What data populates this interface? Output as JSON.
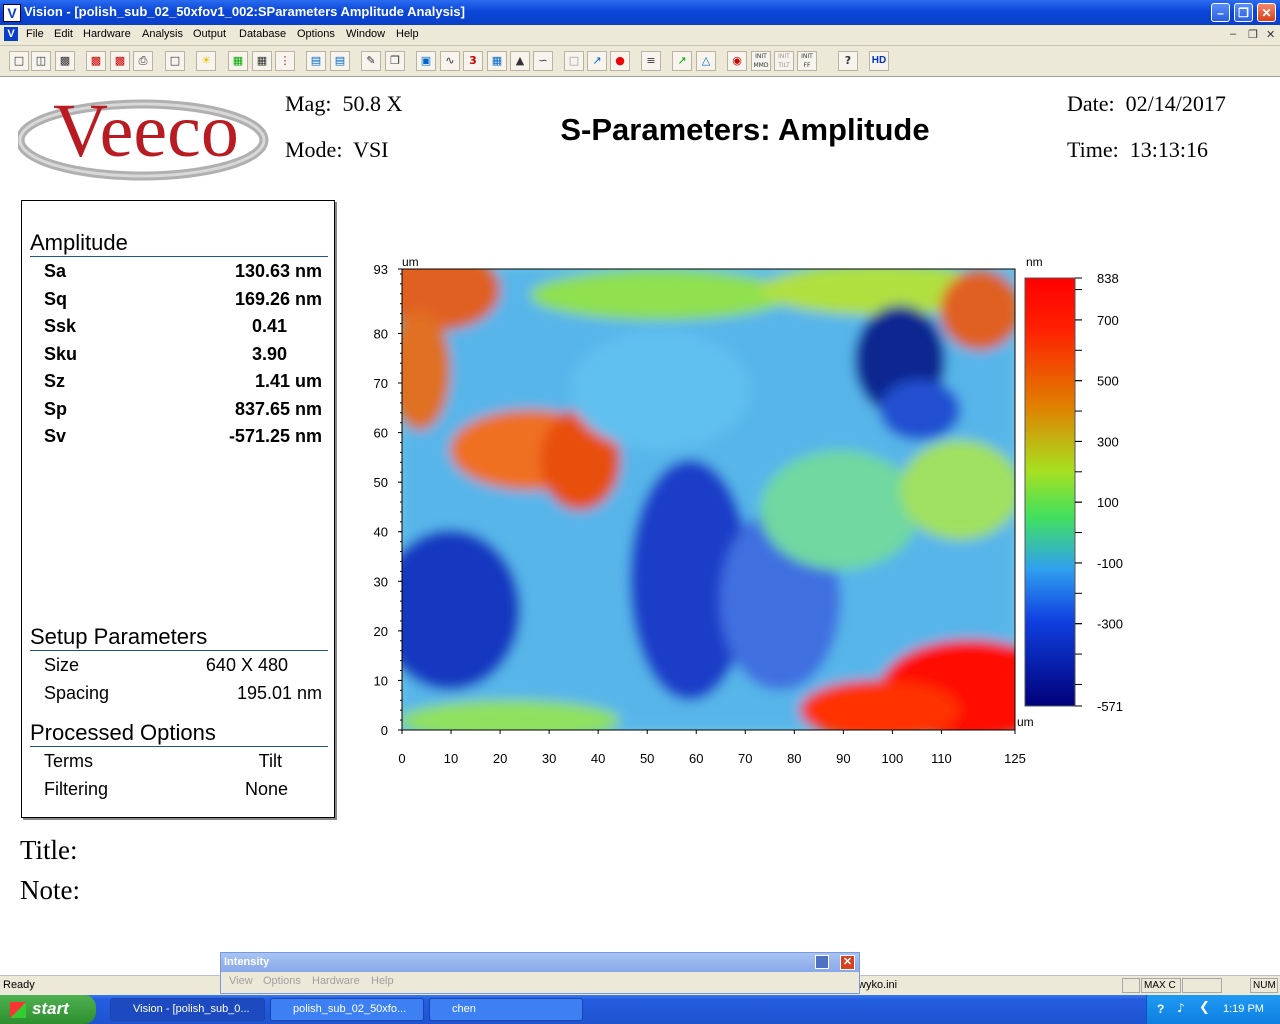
{
  "window": {
    "title": "Vision - [polish_sub_02_50xfov1_002:SParameters Amplitude Analysis]",
    "app_icon_letter": "V",
    "buttons": [
      "minimize-icon",
      "restore-icon",
      "close-icon"
    ]
  },
  "menu": {
    "items": [
      "File",
      "Edit",
      "Hardware",
      "Analysis",
      "Output",
      "Database",
      "Options",
      "Window",
      "Help"
    ],
    "mdi_buttons": [
      "minimize-icon",
      "restore-icon",
      "close-icon"
    ]
  },
  "toolbar": {
    "buttons": [
      "new",
      "open",
      "save",
      "save-as",
      "save-red",
      "print",
      "page",
      "sun",
      "color-map",
      "multi",
      "dots",
      "report",
      "report2",
      "ruler",
      "copy",
      "contour",
      "profile",
      "3d",
      "histogram",
      "peaks",
      "fit",
      "blank",
      "cursor",
      "record",
      "align",
      "marker",
      "pyramid",
      "init-mmd",
      "init-tilt",
      "init-ff",
      "help",
      "hd"
    ],
    "init_mmd": "INIT MMD",
    "init_tilt": "INIT TILT",
    "init_ff": "INIT FF",
    "hd": "HD"
  },
  "header": {
    "logo": "Veeco",
    "mag_label": "Mag:",
    "mag_value": "50.8 X",
    "mode_label": "Mode:",
    "mode_value": "VSI",
    "title": "S-Parameters: Amplitude",
    "date_label": "Date:",
    "date_value": "02/14/2017",
    "time_label": "Time:",
    "time_value": "13:13:16"
  },
  "amplitude": {
    "heading": "Amplitude",
    "rows": [
      {
        "name": "Sa",
        "value": "130.63 nm"
      },
      {
        "name": "Sq",
        "value": "169.26 nm"
      },
      {
        "name": "Ssk",
        "value": "0.41"
      },
      {
        "name": "Sku",
        "value": "3.90"
      },
      {
        "name": "Sz",
        "value": "1.41 um"
      },
      {
        "name": "Sp",
        "value": "837.65 nm"
      },
      {
        "name": "Sv",
        "value": "-571.25 nm"
      }
    ]
  },
  "setup": {
    "heading": "Setup Parameters",
    "rows": [
      {
        "name": "Size",
        "value": "640 X 480"
      },
      {
        "name": "Spacing",
        "value": "195.01 nm"
      }
    ]
  },
  "processed": {
    "heading": "Processed Options",
    "rows": [
      {
        "name": "Terms",
        "value": "Tilt"
      },
      {
        "name": "Filtering",
        "value": "None"
      }
    ]
  },
  "footer": {
    "title_label": "Title:",
    "note_label": "Note:"
  },
  "plot": {
    "x_unit": "um",
    "y_unit": "um",
    "color_unit": "nm",
    "x_ticks": [
      "0",
      "10",
      "20",
      "30",
      "40",
      "50",
      "60",
      "70",
      "80",
      "90",
      "100",
      "110",
      "125"
    ],
    "y_ticks": [
      "0",
      "10",
      "20",
      "30",
      "40",
      "50",
      "60",
      "70",
      "80",
      "93"
    ],
    "color_ticks": [
      "838",
      "700",
      "500",
      "300",
      "100",
      "-100",
      "-300",
      "-571"
    ],
    "xlim": [
      0,
      125
    ],
    "ylim": [
      0,
      93
    ],
    "zlim": [
      -571,
      838
    ]
  },
  "intensity": {
    "title": "Intensity",
    "menu": [
      "View",
      "Options",
      "Hardware",
      "Help"
    ]
  },
  "status": {
    "text": "Ready",
    "ini": "wyko.ini",
    "panes": [
      "MAX C",
      "NUM"
    ]
  },
  "taskbar": {
    "start": "start",
    "tasks": [
      "Vision - [polish_sub_0...",
      "polish_sub_02_50xfo...",
      "chen"
    ],
    "clock": "1:19 PM"
  }
}
